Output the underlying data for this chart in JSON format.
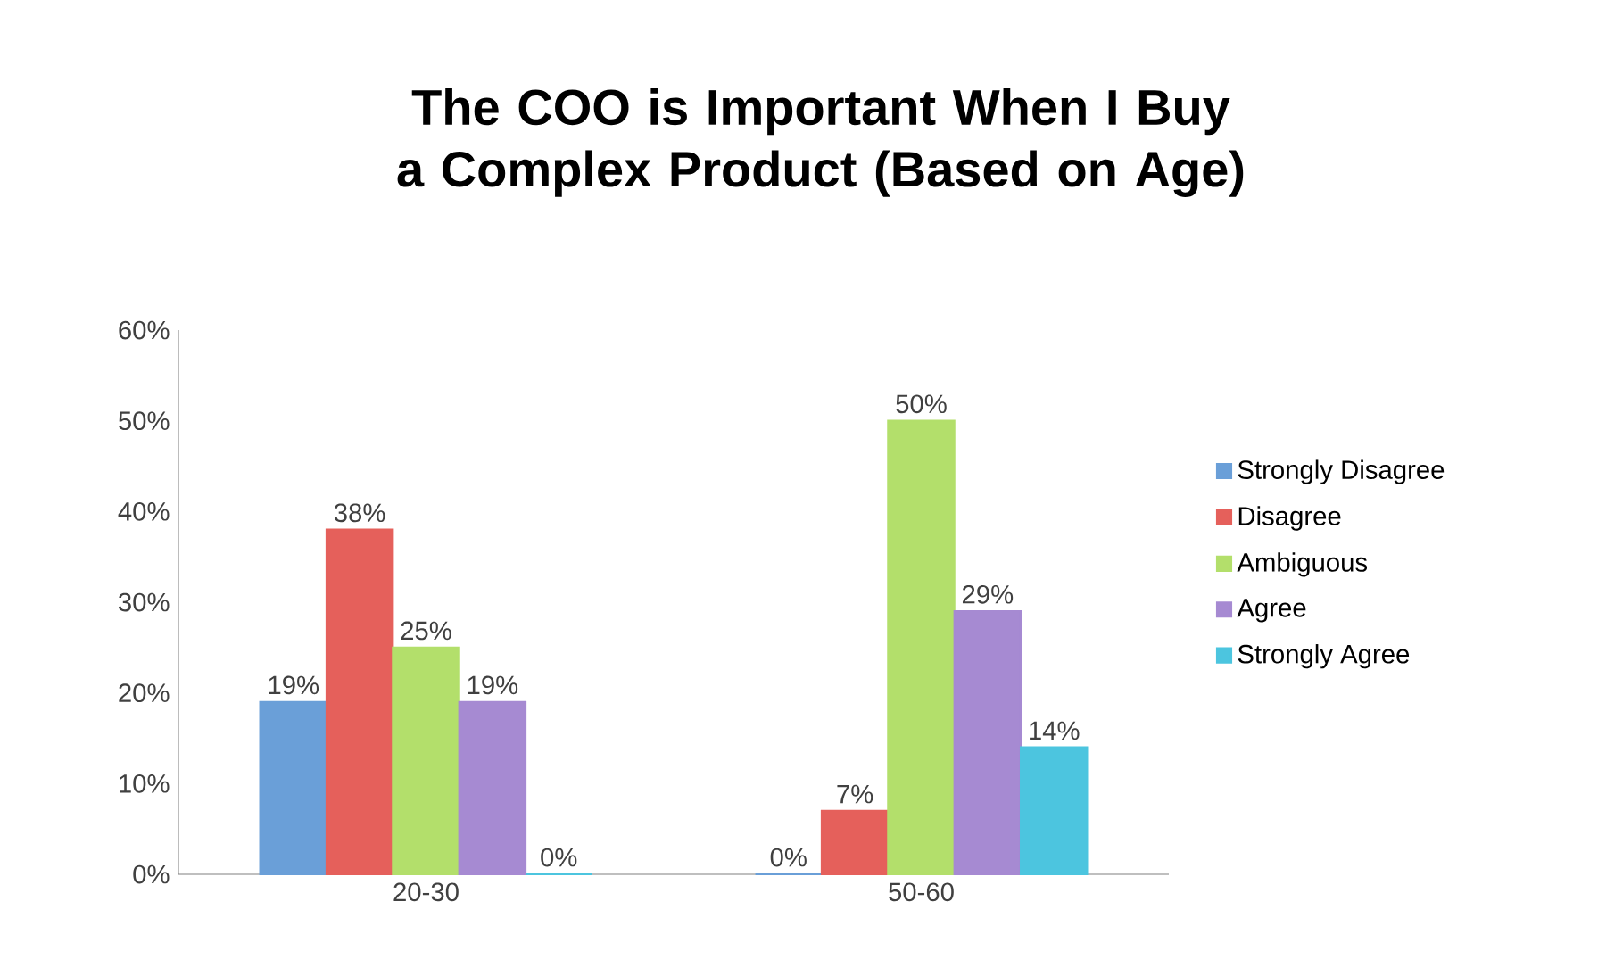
{
  "chart_data": {
    "type": "bar",
    "title": "The COO is Important When I Buy a Complex Product (Based on Age)",
    "categories": [
      "20-30",
      "50-60"
    ],
    "series": [
      {
        "name": "Strongly Disagree",
        "color": "#6a9fd8",
        "values": [
          19,
          0
        ],
        "value_labels": [
          "19%",
          "0%"
        ]
      },
      {
        "name": "Disagree",
        "color": "#e5605b",
        "values": [
          38,
          7
        ],
        "value_labels": [
          "38%",
          "7%"
        ]
      },
      {
        "name": "Ambiguous",
        "color": "#b3df6b",
        "values": [
          25,
          50
        ],
        "value_labels": [
          "25%",
          "50%"
        ]
      },
      {
        "name": "Agree",
        "color": "#a68ad2",
        "values": [
          19,
          29
        ],
        "value_labels": [
          "19%",
          "29%"
        ]
      },
      {
        "name": "Strongly Agree",
        "color": "#4cc5df",
        "values": [
          0,
          14
        ],
        "value_labels": [
          "0%",
          "14%"
        ]
      }
    ],
    "ylim": [
      0,
      60
    ],
    "yticks": [
      {
        "value": 0,
        "label": "0%"
      },
      {
        "value": 10,
        "label": "10%"
      },
      {
        "value": 20,
        "label": "20%"
      },
      {
        "value": 30,
        "label": "30%"
      },
      {
        "value": 40,
        "label": "40%"
      },
      {
        "value": 50,
        "label": "50%"
      },
      {
        "value": 60,
        "label": "60%"
      }
    ],
    "grid": false,
    "legend": "right"
  }
}
